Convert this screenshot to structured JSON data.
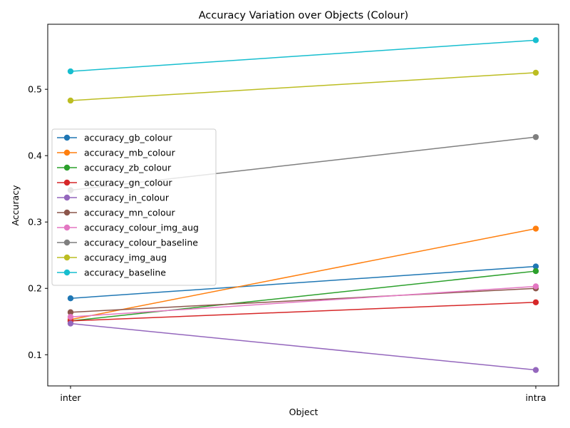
{
  "chart_data": {
    "type": "line",
    "title": "Accuracy Variation over Objects (Colour)",
    "xlabel": "Object",
    "ylabel": "Accuracy",
    "categories": [
      "inter",
      "intra"
    ],
    "ylim": [
      0.053,
      0.598
    ],
    "yticks": [
      0.1,
      0.2,
      0.3,
      0.4,
      0.5
    ],
    "ytick_labels": [
      "0.1",
      "0.2",
      "0.3",
      "0.4",
      "0.5"
    ],
    "grid": false,
    "legend_position": "center-left",
    "series": [
      {
        "name": "accuracy_gb_colour",
        "color": "#1f77b4",
        "values": [
          0.185,
          0.233
        ]
      },
      {
        "name": "accuracy_mb_colour",
        "color": "#ff7f0e",
        "values": [
          0.153,
          0.29
        ]
      },
      {
        "name": "accuracy_zb_colour",
        "color": "#2ca02c",
        "values": [
          0.151,
          0.226
        ]
      },
      {
        "name": "accuracy_gn_colour",
        "color": "#d62728",
        "values": [
          0.151,
          0.179
        ]
      },
      {
        "name": "accuracy_in_colour",
        "color": "#9467bd",
        "values": [
          0.147,
          0.077
        ]
      },
      {
        "name": "accuracy_mn_colour",
        "color": "#8c564b",
        "values": [
          0.164,
          0.2
        ]
      },
      {
        "name": "accuracy_colour_img_aug",
        "color": "#e377c2",
        "values": [
          0.157,
          0.203
        ]
      },
      {
        "name": "accuracy_colour_baseline",
        "color": "#7f7f7f",
        "values": [
          0.348,
          0.428
        ]
      },
      {
        "name": "accuracy_img_aug",
        "color": "#bcbd22",
        "values": [
          0.483,
          0.525
        ]
      },
      {
        "name": "accuracy_baseline",
        "color": "#17becf",
        "values": [
          0.527,
          0.574
        ]
      }
    ]
  }
}
